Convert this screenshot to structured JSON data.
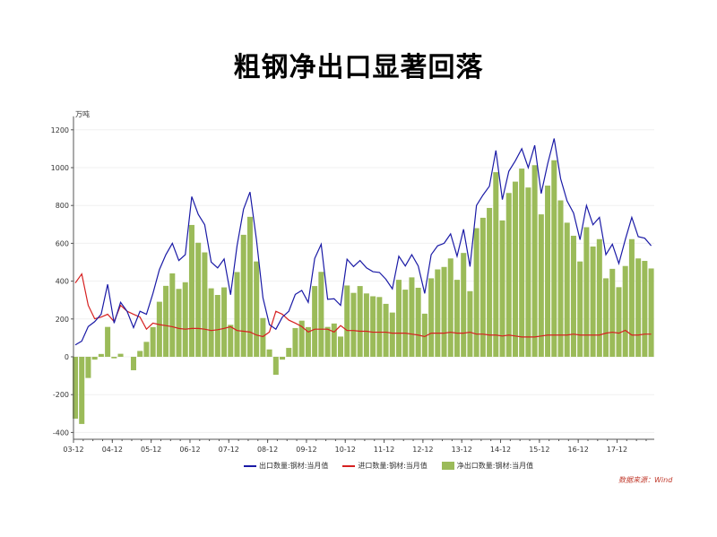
{
  "chart_data": {
    "type": "bar+line",
    "title": "粗钢净出口显著回落",
    "unit": "万吨",
    "x_start": "2003-12",
    "x_step_months": 2,
    "x_ticks": [
      "03-12",
      "04-12",
      "05-12",
      "06-12",
      "07-12",
      "08-12",
      "09-12",
      "10-12",
      "11-12",
      "12-12",
      "13-12",
      "14-12",
      "15-12",
      "16-12",
      "17-12"
    ],
    "y_ticks": [
      -400,
      -200,
      0,
      200,
      400,
      600,
      800,
      1000,
      1200
    ],
    "ylim": [
      -400,
      1200
    ],
    "series": [
      {
        "name": "出口数量:钢材:当月值",
        "type": "line",
        "color": "#1a1aa6",
        "values": [
          63,
          83,
          160,
          186,
          225,
          383,
          178,
          288,
          241,
          154,
          241,
          225,
          335,
          461,
          540,
          600,
          509,
          540,
          847,
          753,
          698,
          501,
          470,
          517,
          328,
          587,
          780,
          871,
          619,
          312,
          170,
          146,
          210,
          241,
          330,
          351,
          288,
          520,
          595,
          304,
          307,
          272,
          516,
          477,
          509,
          470,
          450,
          446,
          410,
          359,
          532,
          480,
          540,
          480,
          335,
          540,
          587,
          600,
          650,
          532,
          674,
          477,
          800,
          855,
          902,
          1091,
          831,
          981,
          1036,
          1100,
          1000,
          1118,
          863,
          1020,
          1154,
          942,
          824,
          760,
          619,
          800,
          698,
          737,
          540,
          595,
          493,
          620,
          737,
          635,
          627,
          587
        ]
      },
      {
        "name": "进口数量:钢材:当月值",
        "type": "line",
        "color": "#d62020",
        "values": [
          390,
          438,
          272,
          201,
          210,
          225,
          186,
          272,
          241,
          225,
          210,
          146,
          178,
          170,
          165,
          159,
          150,
          146,
          150,
          150,
          146,
          139,
          143,
          150,
          159,
          139,
          135,
          131,
          115,
          107,
          131,
          241,
          225,
          194,
          178,
          160,
          131,
          146,
          146,
          146,
          131,
          165,
          139,
          139,
          135,
          135,
          130,
          130,
          130,
          125,
          125,
          125,
          120,
          115,
          107,
          125,
          125,
          125,
          130,
          125,
          125,
          130,
          120,
          120,
          115,
          115,
          110,
          115,
          110,
          105,
          105,
          105,
          110,
          115,
          115,
          115,
          115,
          120,
          115,
          115,
          115,
          115,
          125,
          130,
          125,
          140,
          115,
          115,
          120,
          120
        ]
      },
      {
        "name": "净出口数量:钢材:当月值",
        "type": "bar",
        "color": "#9bbb59",
        "values": [
          -327,
          -355,
          -112,
          -15,
          15,
          158,
          -8,
          16,
          0,
          -71,
          31,
          79,
          157,
          291,
          375,
          441,
          359,
          394,
          697,
          603,
          552,
          362,
          327,
          367,
          169,
          448,
          645,
          740,
          504,
          205,
          39,
          -95,
          -15,
          47,
          152,
          191,
          157,
          374,
          449,
          158,
          176,
          107,
          377,
          338,
          374,
          335,
          320,
          316,
          280,
          234,
          407,
          355,
          420,
          365,
          228,
          415,
          462,
          475,
          520,
          407,
          549,
          347,
          680,
          735,
          787,
          976,
          721,
          866,
          926,
          995,
          895,
          1013,
          753,
          905,
          1039,
          827,
          709,
          640,
          504,
          685,
          583,
          622,
          415,
          465,
          368,
          480,
          622,
          520,
          507,
          467
        ]
      }
    ],
    "legend_position": "bottom",
    "source": "数据来源：Wind"
  }
}
